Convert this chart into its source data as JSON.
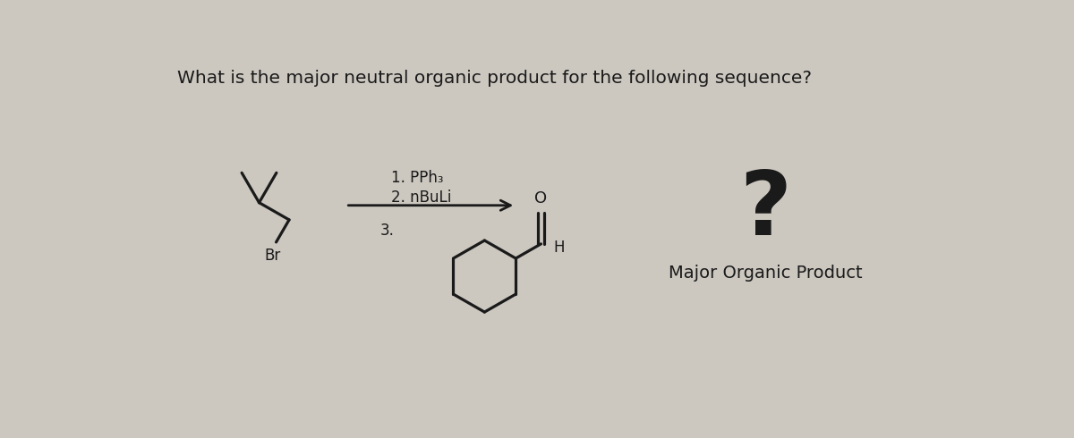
{
  "title": "What is the major neutral organic product for the following sequence?",
  "title_fontsize": 14.5,
  "background_color": "#ccc8c0",
  "line_color": "#1a1a1a",
  "text_color": "#1a1a1a",
  "line_width": 2.3,
  "reagents_line1": "1. PPh₃",
  "reagents_line2": "2. nBuLi",
  "step3_label": "3.",
  "question_mark": "?",
  "answer_label": "Major Organic Product"
}
